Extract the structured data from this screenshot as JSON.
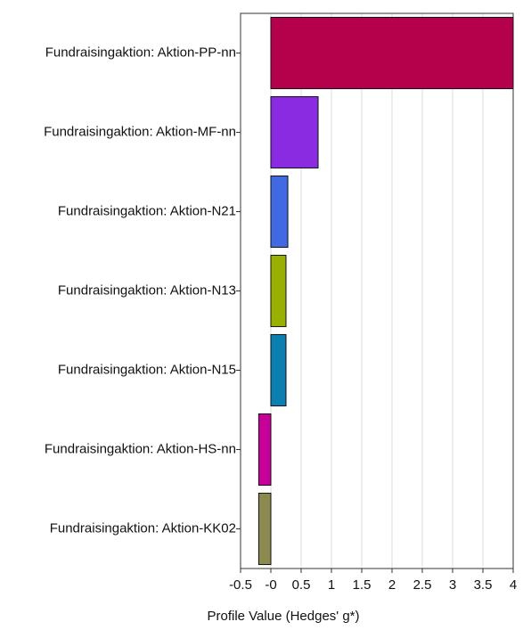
{
  "chart_data": {
    "type": "hbar",
    "x_label": "Profile Value (Hedges' g*)",
    "categories": [
      "Fundraisingaktion: Aktion-PP-nn",
      "Fundraisingaktion: Aktion-MF-nn",
      "Fundraisingaktion: Aktion-N21",
      "Fundraisingaktion: Aktion-N13",
      "Fundraisingaktion: Aktion-N15",
      "Fundraisingaktion: Aktion-HS-nn",
      "Fundraisingaktion: Aktion-KK02"
    ],
    "values": [
      4.0,
      0.78,
      0.28,
      0.25,
      0.25,
      -0.2,
      -0.2
    ],
    "colors": [
      "#b5004b",
      "#8a2be2",
      "#4169e1",
      "#9ab000",
      "#0a7fb0",
      "#c8009a",
      "#8b8a50"
    ],
    "xlim": [
      -0.5,
      4
    ],
    "xticks": [
      -0.5,
      {
        "value": 0,
        "label": "-0"
      },
      0.5,
      1,
      1.5,
      2,
      2.5,
      3,
      3.5,
      4
    ],
    "grid": true
  }
}
